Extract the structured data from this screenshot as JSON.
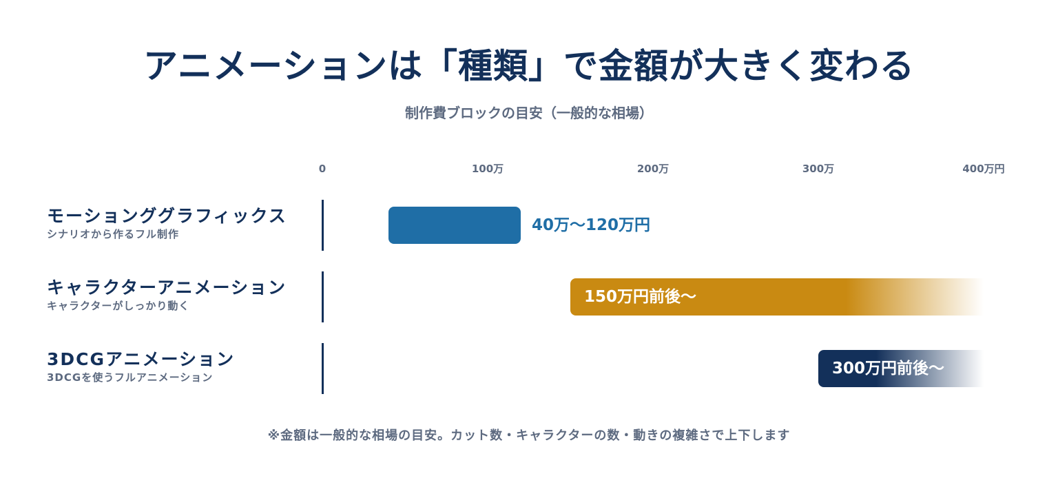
{
  "title": "アニメーションは「種類」で金額が大きく変わる",
  "subtitle": "制作費ブロックの目安（一般的な相場）",
  "footnote": "※金額は一般的な相場の目安。カット数・キャラクターの数・動きの複雑さで上下します",
  "colors": {
    "navy": "#13305a",
    "blue": "#1f6ea6",
    "gold": "#c98a12",
    "gray": "#5d6a80"
  },
  "chart_data": {
    "type": "bar",
    "orientation": "horizontal",
    "title": "アニメーションは「種類」で金額が大きく変わる",
    "subtitle": "制作費ブロックの目安（一般的な相場）",
    "xlim": [
      0,
      400
    ],
    "unit": "万円",
    "ticks": [
      {
        "value": 0,
        "label": "0"
      },
      {
        "value": 100,
        "label": "100万"
      },
      {
        "value": 200,
        "label": "200万"
      },
      {
        "value": 300,
        "label": "300万"
      },
      {
        "value": 400,
        "label": "400万円"
      }
    ],
    "categories": [
      {
        "name": "モーションググラフィックス",
        "description": "シナリオから作るフル制作",
        "start": 40,
        "end": 120,
        "open_ended": false,
        "label": "40万〜120万円",
        "label_position": "outside",
        "color": "#1f6ea6"
      },
      {
        "name": "キャラクターアニメーション",
        "description": "キャラクターがしっかり動く",
        "start": 150,
        "end": 400,
        "open_ended": true,
        "label": "150万円前後〜",
        "label_position": "inside",
        "color": "#c98a12"
      },
      {
        "name": "3DCGアニメーション",
        "description": "3DCGを使うフルアニメーション",
        "start": 300,
        "end": 400,
        "open_ended": true,
        "label": "300万円前後〜",
        "label_position": "inside",
        "color": "#13305a"
      }
    ]
  }
}
